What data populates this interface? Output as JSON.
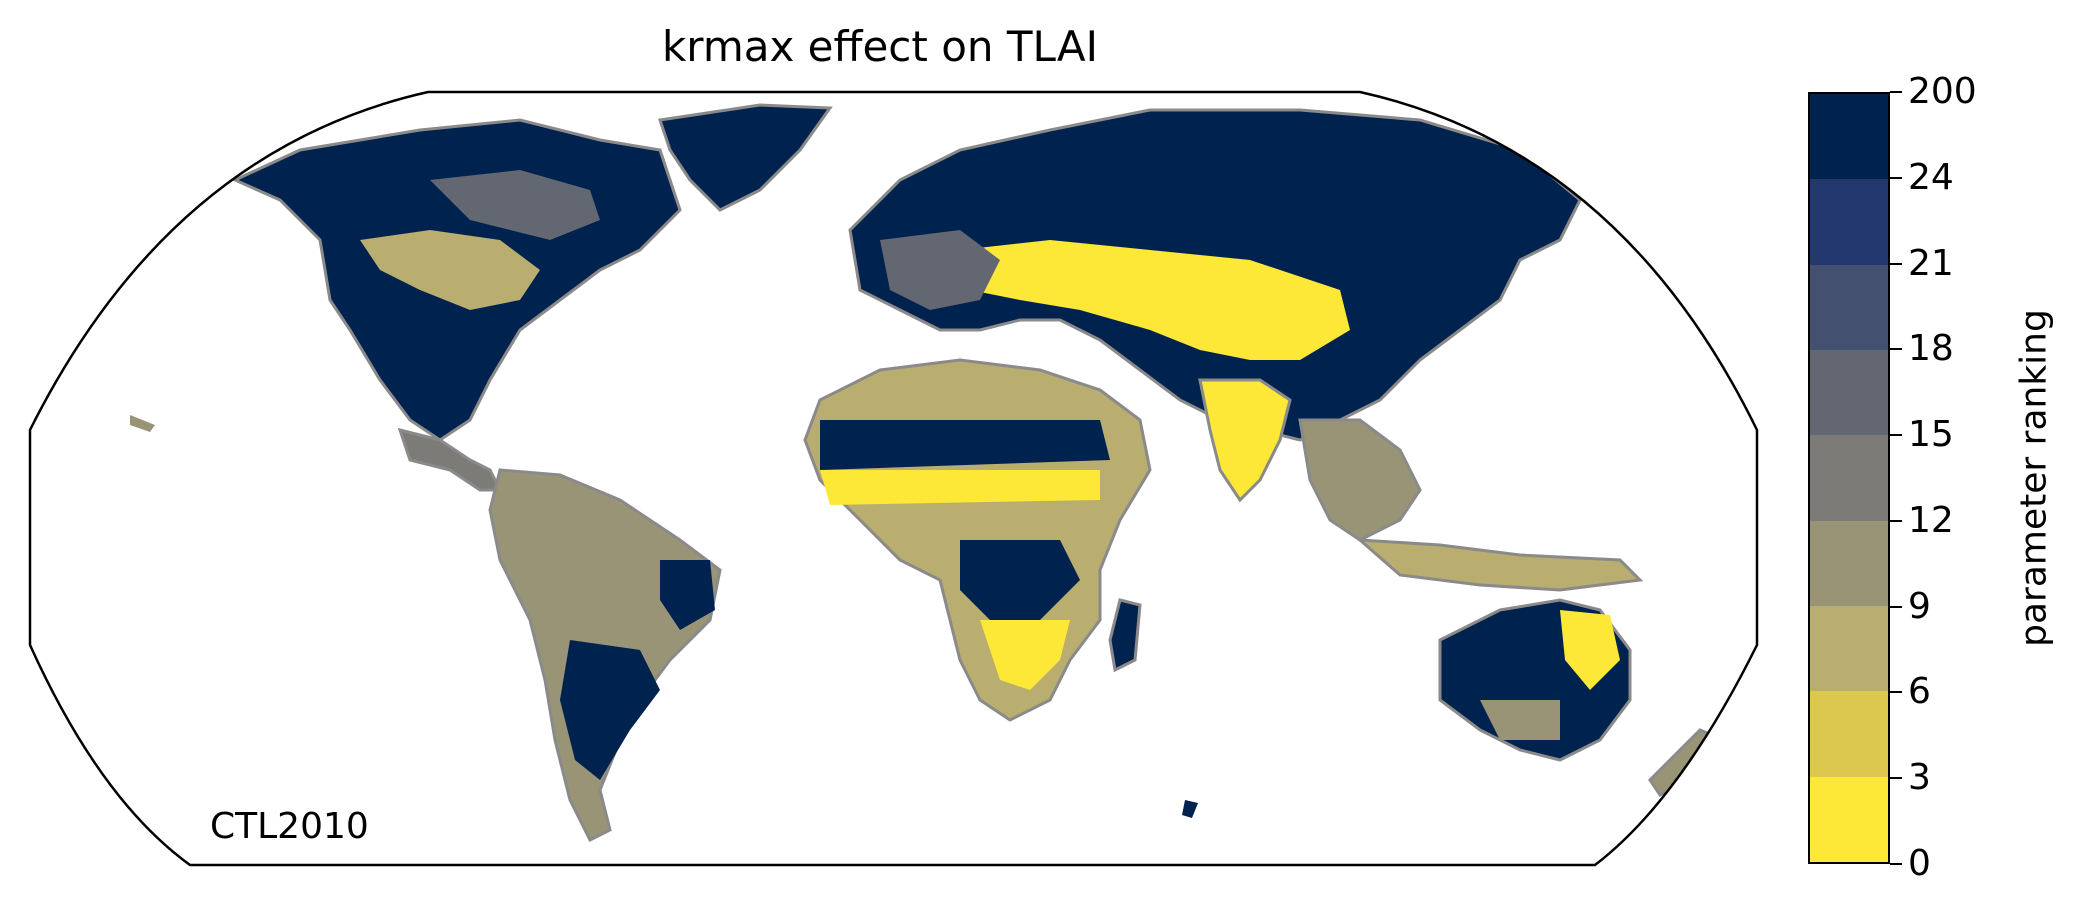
{
  "title": "krmax effect on TLAI",
  "map_label": "CTL2010",
  "colorbar": {
    "label": "parameter ranking",
    "ticks": [
      "0",
      "3",
      "6",
      "9",
      "12",
      "15",
      "18",
      "21",
      "24",
      "200"
    ],
    "colors": [
      "#fde737",
      "#dcc84e",
      "#b9ad6f",
      "#9a9477",
      "#7c7b78",
      "#626772",
      "#44506f",
      "#22386e",
      "#00224e"
    ]
  },
  "map": {
    "projection": "Robinson",
    "land_outline_color": "#8a8a8a",
    "background": "#ffffff"
  }
}
